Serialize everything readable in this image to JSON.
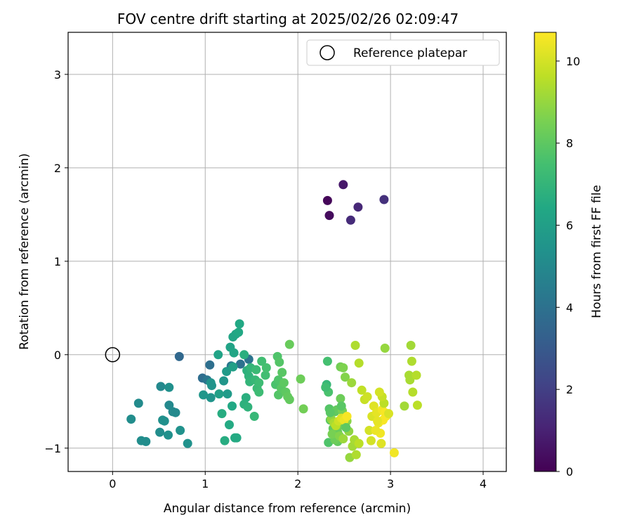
{
  "chart_data": {
    "type": "scatter",
    "title": "FOV centre drift starting at 2025/02/26 02:09:47",
    "xlabel": "Angular distance from reference (arcmin)",
    "ylabel": "Rotation from reference (arcmin)",
    "xlim": [
      -0.48,
      4.25
    ],
    "ylim": [
      -1.25,
      3.45
    ],
    "xticks": [
      "0",
      "1",
      "2",
      "3",
      "4"
    ],
    "yticks": [
      "−1",
      "0",
      "1",
      "2",
      "3"
    ],
    "grid": true,
    "colormap": "viridis",
    "colorbar": {
      "label": "Hours from first FF file",
      "range": [
        0,
        10.7
      ],
      "ticks": [
        "0",
        "2",
        "4",
        "6",
        "8",
        "10"
      ]
    },
    "legend": {
      "position": "top-right",
      "entries": [
        "Reference platepar"
      ]
    },
    "reference": {
      "x": 0,
      "y": 0,
      "marker": "open-circle",
      "color": "#000000"
    },
    "series": [
      {
        "points": [
          [
            2.32,
            1.65,
            0.15
          ],
          [
            2.34,
            1.49,
            0.3
          ],
          [
            2.49,
            1.82,
            0.7
          ],
          [
            2.57,
            1.44,
            1.3
          ],
          [
            2.65,
            1.58,
            1.2
          ],
          [
            2.93,
            1.66,
            1.5
          ],
          [
            0.72,
            -0.02,
            3.6
          ],
          [
            0.97,
            -0.25,
            3.8
          ],
          [
            1.05,
            -0.11,
            3.9
          ],
          [
            1.38,
            -0.1,
            4.0
          ],
          [
            1.47,
            -0.05,
            4.1
          ],
          [
            1.02,
            -0.27,
            4.2
          ],
          [
            1.28,
            -0.12,
            4.3
          ],
          [
            0.52,
            -0.34,
            5.0
          ],
          [
            0.61,
            -0.54,
            5.0
          ],
          [
            0.65,
            -0.61,
            5.0
          ],
          [
            0.68,
            -0.62,
            5.0
          ],
          [
            0.28,
            -0.52,
            5.1
          ],
          [
            0.2,
            -0.69,
            5.2
          ],
          [
            0.31,
            -0.92,
            5.2
          ],
          [
            0.36,
            -0.93,
            5.2
          ],
          [
            0.51,
            -0.83,
            5.2
          ],
          [
            0.6,
            -0.86,
            5.3
          ],
          [
            0.54,
            -0.7,
            5.3
          ],
          [
            0.56,
            -0.71,
            5.3
          ],
          [
            0.61,
            -0.35,
            5.3
          ],
          [
            0.73,
            -0.81,
            5.4
          ],
          [
            0.81,
            -0.95,
            5.4
          ],
          [
            1.06,
            -0.3,
            5.5
          ],
          [
            1.07,
            -0.33,
            5.5
          ],
          [
            1.06,
            -0.46,
            5.5
          ],
          [
            0.98,
            -0.43,
            5.6
          ],
          [
            1.2,
            -0.28,
            5.6
          ],
          [
            1.23,
            -0.18,
            5.8
          ],
          [
            1.24,
            -0.42,
            5.8
          ],
          [
            1.3,
            -0.13,
            6.0
          ],
          [
            1.15,
            -0.42,
            6.0
          ],
          [
            1.14,
            0.0,
            6.2
          ],
          [
            1.27,
            0.08,
            6.2
          ],
          [
            1.3,
            0.19,
            6.3
          ],
          [
            1.31,
            0.02,
            6.3
          ],
          [
            1.33,
            0.22,
            6.3
          ],
          [
            1.36,
            0.24,
            6.4
          ],
          [
            1.37,
            0.33,
            6.4
          ],
          [
            1.29,
            -0.55,
            6.4
          ],
          [
            1.32,
            -0.89,
            6.5
          ],
          [
            1.34,
            -0.89,
            6.5
          ],
          [
            1.26,
            -0.75,
            6.5
          ],
          [
            1.18,
            -0.63,
            6.6
          ],
          [
            1.21,
            -0.92,
            6.6
          ],
          [
            1.42,
            0.0,
            6.7
          ],
          [
            1.44,
            -0.46,
            6.7
          ],
          [
            1.45,
            -0.17,
            6.8
          ],
          [
            1.42,
            -0.53,
            6.8
          ],
          [
            1.47,
            -0.23,
            6.9
          ],
          [
            1.46,
            -0.56,
            6.9
          ],
          [
            1.48,
            -0.29,
            7.0
          ],
          [
            1.49,
            -0.14,
            7.0
          ],
          [
            1.53,
            -0.66,
            7.1
          ],
          [
            1.54,
            -0.27,
            7.1
          ],
          [
            1.55,
            -0.16,
            7.2
          ],
          [
            1.56,
            -0.36,
            7.2
          ],
          [
            1.58,
            -0.4,
            7.3
          ],
          [
            1.58,
            -0.3,
            7.3
          ],
          [
            1.61,
            -0.07,
            7.4
          ],
          [
            1.65,
            -0.22,
            7.4
          ],
          [
            1.66,
            -0.14,
            7.5
          ],
          [
            1.76,
            -0.32,
            7.6
          ],
          [
            1.78,
            -0.02,
            7.7
          ],
          [
            1.79,
            -0.27,
            7.7
          ],
          [
            1.79,
            -0.43,
            7.8
          ],
          [
            1.8,
            -0.08,
            7.8
          ],
          [
            1.82,
            -0.36,
            7.9
          ],
          [
            1.83,
            -0.19,
            7.9
          ],
          [
            1.85,
            -0.3,
            8.0
          ],
          [
            1.87,
            -0.4,
            8.0
          ],
          [
            1.89,
            -0.45,
            8.1
          ],
          [
            1.91,
            -0.48,
            8.1
          ],
          [
            1.91,
            0.11,
            8.2
          ],
          [
            2.03,
            -0.26,
            8.3
          ],
          [
            2.06,
            -0.58,
            8.4
          ],
          [
            2.31,
            -0.32,
            7.1
          ],
          [
            2.32,
            -0.07,
            7.5
          ],
          [
            2.33,
            -0.4,
            7.6
          ],
          [
            2.33,
            -0.94,
            7.7
          ],
          [
            2.34,
            -0.58,
            7.8
          ],
          [
            2.35,
            -0.7,
            7.9
          ],
          [
            2.38,
            -0.79,
            8.0
          ],
          [
            2.4,
            -0.61,
            8.0
          ],
          [
            2.42,
            -0.59,
            8.1
          ],
          [
            2.43,
            -0.83,
            8.2
          ],
          [
            2.45,
            -0.76,
            8.3
          ],
          [
            2.46,
            -0.47,
            8.3
          ],
          [
            2.46,
            -0.13,
            8.4
          ],
          [
            2.48,
            -0.6,
            8.5
          ],
          [
            2.49,
            -0.14,
            8.6
          ],
          [
            2.51,
            -0.24,
            8.7
          ],
          [
            2.53,
            -0.71,
            8.8
          ],
          [
            2.55,
            -0.82,
            8.9
          ],
          [
            2.56,
            -1.1,
            9.0
          ],
          [
            2.58,
            -0.3,
            9.1
          ],
          [
            2.59,
            -0.98,
            9.2
          ],
          [
            2.61,
            -0.91,
            9.3
          ],
          [
            2.62,
            0.1,
            9.4
          ],
          [
            2.63,
            -1.07,
            9.4
          ],
          [
            2.66,
            -0.09,
            9.5
          ],
          [
            2.66,
            -0.95,
            9.6
          ],
          [
            2.69,
            -0.38,
            9.7
          ],
          [
            2.72,
            -0.48,
            9.8
          ],
          [
            2.75,
            -0.45,
            9.9
          ],
          [
            2.77,
            -0.81,
            10.0
          ],
          [
            2.8,
            -0.66,
            10.1
          ],
          [
            2.82,
            -0.55,
            10.2
          ],
          [
            2.85,
            -0.62,
            10.3
          ],
          [
            2.87,
            -0.73,
            10.4
          ],
          [
            2.89,
            -0.84,
            10.5
          ],
          [
            2.91,
            -0.59,
            10.5
          ],
          [
            2.92,
            -0.7,
            10.6
          ],
          [
            2.94,
            -0.62,
            10.6
          ],
          [
            2.95,
            -0.66,
            10.6
          ],
          [
            2.94,
            0.07,
            9.0
          ],
          [
            2.93,
            -0.52,
            9.6
          ],
          [
            2.91,
            -0.45,
            9.8
          ],
          [
            2.88,
            -0.4,
            10.0
          ],
          [
            2.86,
            -0.71,
            10.3
          ],
          [
            2.84,
            -0.81,
            10.4
          ],
          [
            2.9,
            -0.95,
            10.2
          ],
          [
            2.79,
            -0.92,
            10.0
          ],
          [
            2.98,
            -0.63,
            10.1
          ],
          [
            3.04,
            -1.05,
            10.5
          ],
          [
            3.15,
            -0.55,
            9.2
          ],
          [
            3.2,
            -0.22,
            9.3
          ],
          [
            3.21,
            -0.27,
            9.3
          ],
          [
            3.22,
            0.1,
            9.2
          ],
          [
            3.23,
            -0.07,
            9.4
          ],
          [
            3.24,
            -0.4,
            9.5
          ],
          [
            3.28,
            -0.22,
            9.5
          ],
          [
            3.29,
            -0.54,
            9.6
          ],
          [
            2.43,
            -0.93,
            8.1
          ],
          [
            2.4,
            -0.91,
            8.3
          ],
          [
            2.37,
            -0.85,
            8.5
          ],
          [
            2.36,
            -0.69,
            8.9
          ],
          [
            2.39,
            -0.73,
            9.3
          ],
          [
            2.41,
            -0.76,
            9.6
          ],
          [
            2.44,
            -0.71,
            9.9
          ],
          [
            2.47,
            -0.68,
            10.2
          ],
          [
            2.5,
            -0.7,
            10.4
          ],
          [
            2.53,
            -0.66,
            10.6
          ],
          [
            2.45,
            -0.87,
            8.7
          ],
          [
            2.49,
            -0.9,
            9.1
          ],
          [
            2.52,
            -0.78,
            8.0
          ],
          [
            2.35,
            -0.62,
            7.9
          ],
          [
            2.3,
            -0.35,
            7.4
          ],
          [
            2.47,
            -0.55,
            7.9
          ]
        ]
      }
    ]
  }
}
